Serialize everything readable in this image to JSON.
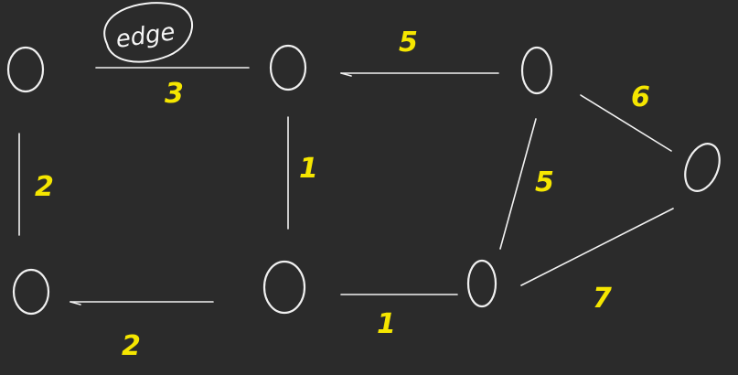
{
  "diagram": {
    "type": "weighted-undirected-graph-sketch",
    "background_color": "#2b2b2b",
    "stroke_color": "#f0f0f0",
    "weight_color": "#f5e600",
    "annotation": {
      "text": "edge"
    },
    "nodes": [
      {
        "id": "top-left"
      },
      {
        "id": "top-middle"
      },
      {
        "id": "bottom-left"
      },
      {
        "id": "bottom-middle"
      },
      {
        "id": "top-right"
      },
      {
        "id": "bottom-right"
      },
      {
        "id": "far-right"
      }
    ],
    "edges": [
      {
        "id": "top-left-to-top-middle",
        "from": "top-left",
        "to": "top-middle",
        "weight": "3"
      },
      {
        "id": "top-left-to-bottom-left",
        "from": "top-left",
        "to": "bottom-left",
        "weight": "2"
      },
      {
        "id": "top-middle-to-bottom-middle",
        "from": "top-middle",
        "to": "bottom-middle",
        "weight": "1"
      },
      {
        "id": "bottom-left-to-bottom-middle",
        "from": "bottom-left",
        "to": "bottom-middle",
        "weight": "2"
      },
      {
        "id": "top-middle-to-top-right",
        "from": "top-middle",
        "to": "top-right",
        "weight": "5"
      },
      {
        "id": "bottom-middle-to-bottom-right",
        "from": "bottom-middle",
        "to": "bottom-right",
        "weight": "1"
      },
      {
        "id": "top-right-to-bottom-right",
        "from": "top-right",
        "to": "bottom-right",
        "weight": "5"
      },
      {
        "id": "top-right-to-far-right",
        "from": "top-right",
        "to": "far-right",
        "weight": "6"
      },
      {
        "id": "bottom-right-to-far-right",
        "from": "bottom-right",
        "to": "far-right",
        "weight": "7"
      }
    ]
  }
}
